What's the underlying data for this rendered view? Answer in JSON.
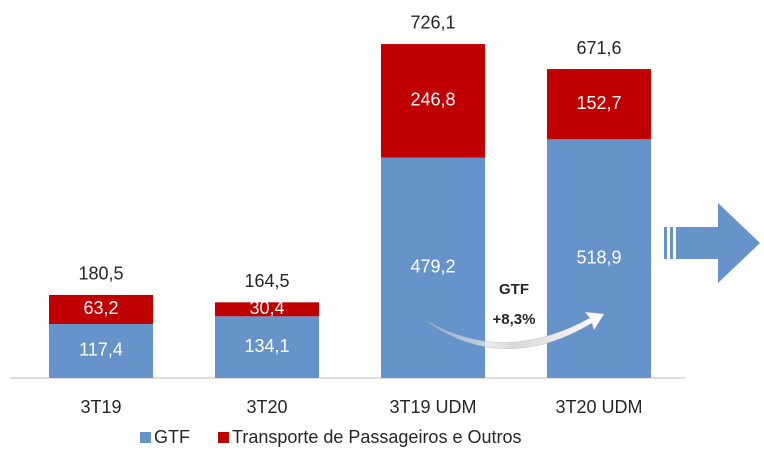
{
  "chart_data": {
    "type": "stacked_bar",
    "categories": [
      "3T19",
      "3T20",
      "3T19 UDM",
      "3T20 UDM"
    ],
    "series": [
      {
        "name": "GTF",
        "color": "#6693c9",
        "values": [
          117.4,
          134.1,
          479.2,
          518.9
        ],
        "value_labels": [
          "117,4",
          "134,1",
          "479,2",
          "518,9"
        ]
      },
      {
        "name": "Transporte de Passageiros e Outros",
        "color": "#c00000",
        "values": [
          63.2,
          30.4,
          246.8,
          152.7
        ],
        "value_labels": [
          "63,2",
          "30,4",
          "246,8",
          "152,7"
        ]
      }
    ],
    "totals": [
      180.5,
      164.5,
      726.1,
      671.6
    ],
    "total_labels": [
      "180,5",
      "164,5",
      "726,1",
      "671,6"
    ],
    "annotations": [
      "GTF",
      "+8,3%"
    ],
    "ylim": [
      0,
      800
    ],
    "legend": "bottom"
  }
}
